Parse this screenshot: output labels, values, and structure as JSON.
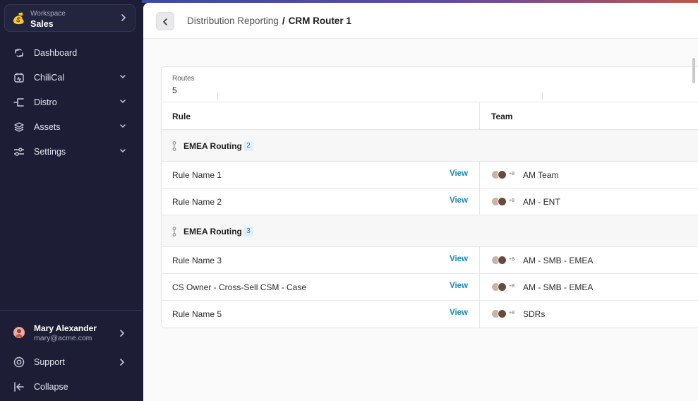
{
  "workspace": {
    "label": "Workspace",
    "name": "Sales",
    "icon": "money-bag-icon"
  },
  "nav": [
    {
      "label": "Dashboard",
      "icon": "dashboard-icon",
      "has_dropdown": false
    },
    {
      "label": "ChiliCal",
      "icon": "calendar-icon",
      "has_dropdown": true
    },
    {
      "label": "Distro",
      "icon": "distro-icon",
      "has_dropdown": true
    },
    {
      "label": "Assets",
      "icon": "layers-icon",
      "has_dropdown": true
    },
    {
      "label": "Settings",
      "icon": "sliders-icon",
      "has_dropdown": true
    }
  ],
  "user": {
    "name": "Mary Alexander",
    "email": "mary@acme.com"
  },
  "footer": {
    "support_label": "Support",
    "collapse_label": "Collapse"
  },
  "breadcrumb": {
    "parent": "Distribution Reporting",
    "separator": "/",
    "current": "CRM Router 1"
  },
  "stats": {
    "routes_label": "Routes",
    "routes_value": "5"
  },
  "table": {
    "columns": {
      "rule": "Rule",
      "team": "Team"
    },
    "groups": [
      {
        "name": "EMEA Routing",
        "count": "2",
        "rows": [
          {
            "rule": "Rule Name 1",
            "action": "View",
            "avatars_more": "+8",
            "team": "AM Team"
          },
          {
            "rule": "Rule Name 2",
            "action": "View",
            "avatars_more": "+8",
            "team": "AM - ENT"
          }
        ]
      },
      {
        "name": "EMEA Routing",
        "count": "3",
        "rows": [
          {
            "rule": "Rule Name 3",
            "action": "View",
            "avatars_more": "+8",
            "team": "AM - SMB - EMEA"
          },
          {
            "rule": "CS Owner - Cross-Sell CSM - Case",
            "action": "View",
            "avatars_more": "+8",
            "team": "AM - SMB - EMEA"
          },
          {
            "rule": "Rule Name 5",
            "action": "View",
            "avatars_more": "+8",
            "team": "SDRs"
          }
        ]
      }
    ]
  },
  "colors": {
    "sidebar": "#1d1e35",
    "accent_link": "#1a8bb5",
    "badge_bg": "#dff0fb",
    "badge_text": "#2a7bc0"
  }
}
